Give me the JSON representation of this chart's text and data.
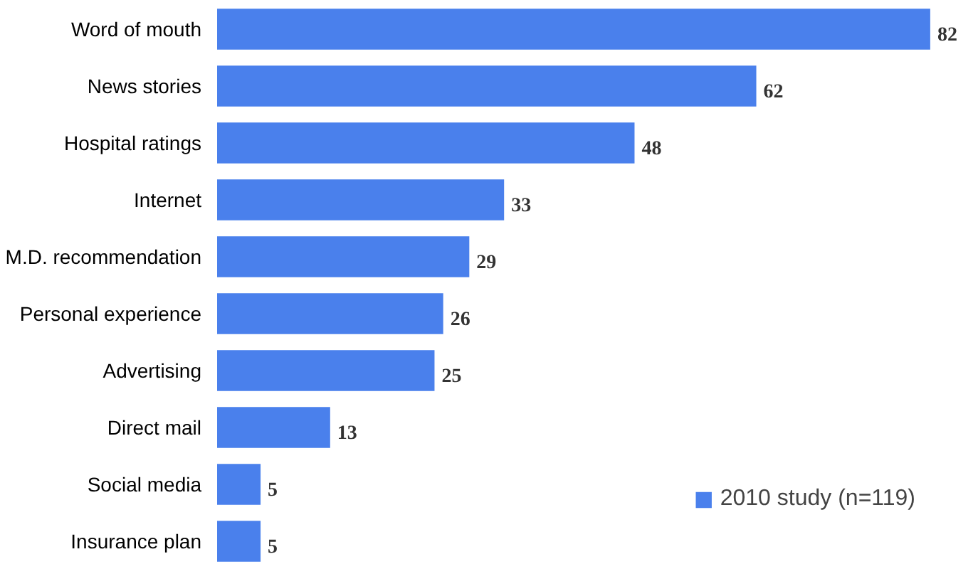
{
  "chart_data": {
    "type": "bar",
    "orientation": "horizontal",
    "categories": [
      "Word of mouth",
      "News stories",
      "Hospital ratings",
      "Internet",
      "M.D. recommendation",
      "Personal experience",
      "Advertising",
      "Direct mail",
      "Social media",
      "Insurance plan"
    ],
    "series": [
      {
        "name": "2010 study (n=119)",
        "color": "#4a80ec",
        "values": [
          82,
          62,
          48,
          33,
          29,
          26,
          25,
          13,
          5,
          5
        ]
      }
    ],
    "data_labels": true,
    "legend": "bottom right",
    "grid": false
  }
}
